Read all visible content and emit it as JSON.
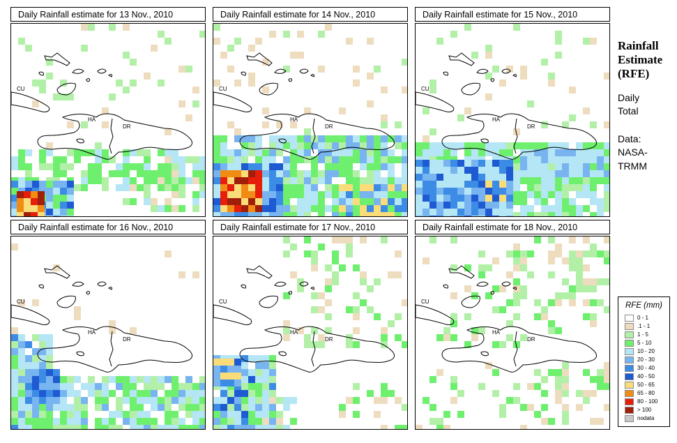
{
  "panels": [
    {
      "title": "Daily Rainfall estimate for  13 Nov., 2010",
      "date": "13 Nov., 2010"
    },
    {
      "title": "Daily Rainfall estimate for  14 Nov., 2010",
      "date": "14 Nov., 2010"
    },
    {
      "title": "Daily Rainfall estimate for  15 Nov., 2010",
      "date": "15 Nov., 2010"
    },
    {
      "title": "Daily Rainfall estimate for  16 Nov., 2010",
      "date": "16 Nov., 2010"
    },
    {
      "title": "Daily Rainfall estimate for  17 Nov., 2010",
      "date": "17 Nov., 2010"
    },
    {
      "title": "Daily Rainfall estimate for  18 Nov., 2010",
      "date": "18 Nov., 2010"
    }
  ],
  "map_labels": {
    "cuba": "CU",
    "haiti": "HA",
    "dominican_republic": "DR"
  },
  "sidebar": {
    "title_line1": "Rainfall",
    "title_line2": "Estimate",
    "title_line3": "(RFE)",
    "period_line1": "Daily",
    "period_line2": "Total",
    "source_line1": "Data:",
    "source_line2": "NASA-",
    "source_line3": "TRMM"
  },
  "legend": {
    "title": "RFE (mm)",
    "classes": [
      {
        "label": "0 - 1",
        "color": "#ffffff"
      },
      {
        "label": ".1 - 1",
        "color": "#eedcbf"
      },
      {
        "label": "1 - 5",
        "color": "#b2f0a8"
      },
      {
        "label": "5 - 10",
        "color": "#6ef06e"
      },
      {
        "label": "10 - 20",
        "color": "#b4e6f5"
      },
      {
        "label": "20 - 30",
        "color": "#78b4f0"
      },
      {
        "label": "30 - 40",
        "color": "#3c8ce6"
      },
      {
        "label": "40 - 50",
        "color": "#1e5ad2"
      },
      {
        "label": "50 - 65",
        "color": "#fadc78"
      },
      {
        "label": "65 - 80",
        "color": "#f08c14"
      },
      {
        "label": "80 - 100",
        "color": "#e61e0a"
      },
      {
        "label": "> 100",
        "color": "#a01e0a"
      },
      {
        "label": "nodata",
        "color": "#c8c8c8"
      }
    ]
  }
}
